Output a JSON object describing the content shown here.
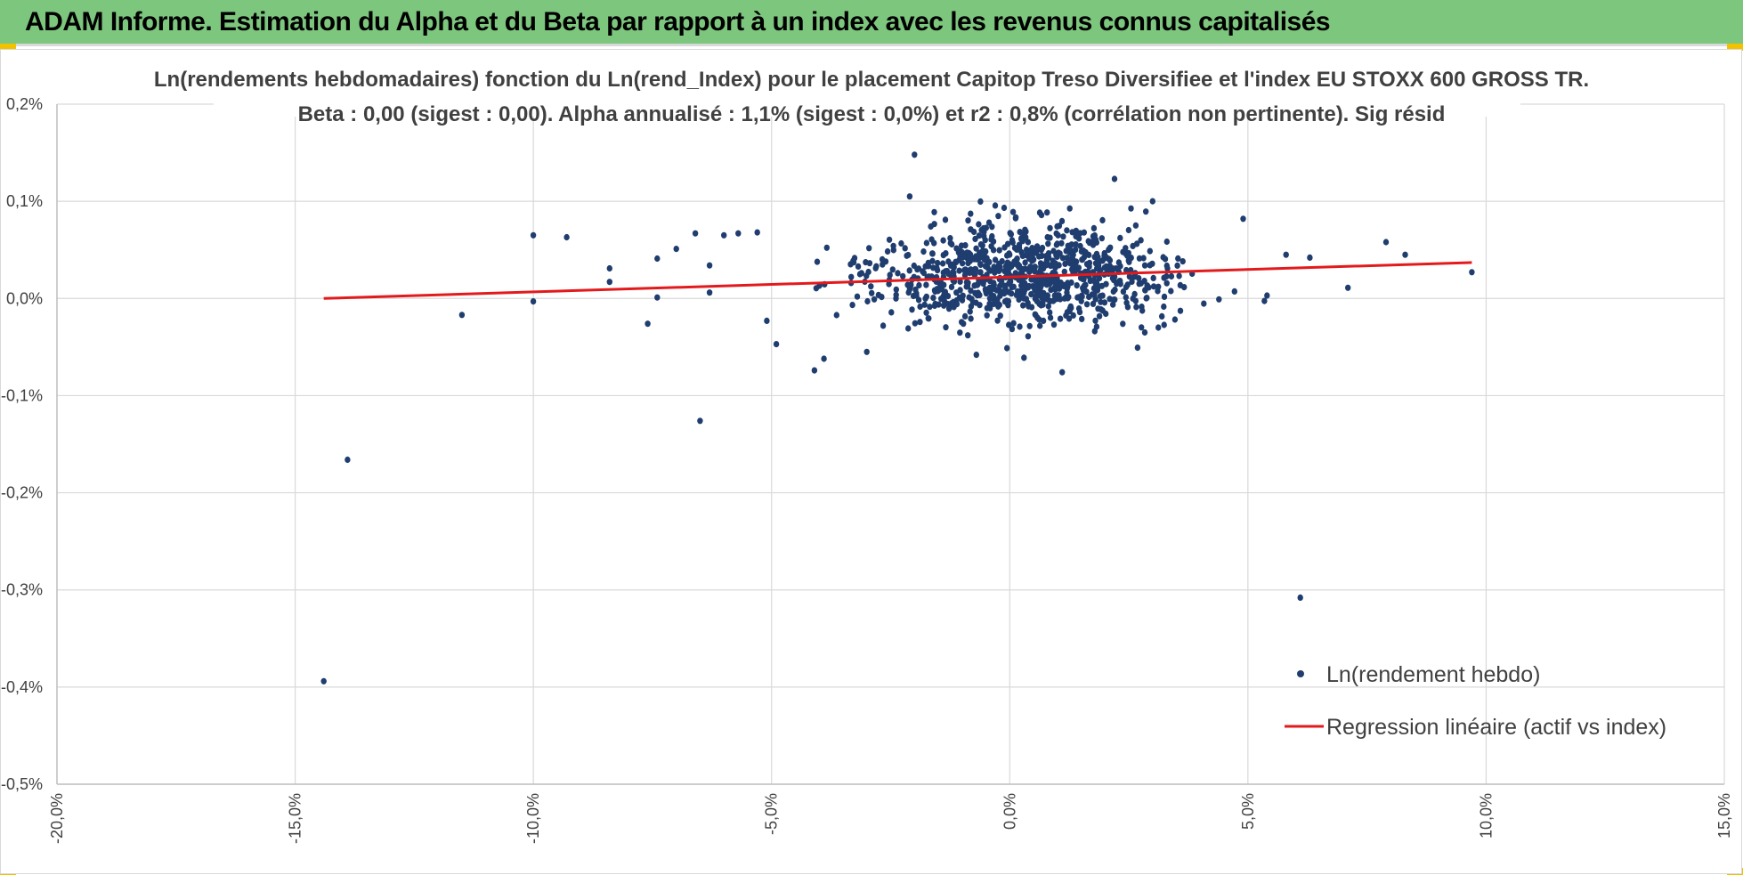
{
  "header": {
    "title": "ADAM Informe. Estimation du Alpha et du Beta par rapport à un index avec les revenus connus capitalisés"
  },
  "colors": {
    "banner": "#7dc67e",
    "points": "#1f3d6e",
    "regression": "#e31a1c",
    "corner": "#f2c200"
  },
  "chart_data": {
    "type": "scatter",
    "title": "Ln(rendements hebdomadaires) fonction du Ln(rend_Index) pour le placement Capitop Treso Diversifiee et l'index EU STOXX 600 GROSS TR.",
    "subtitle": "Beta : 0,00 (sigest : 0,00).  Alpha annualisé : 1,1% (sigest : 0,0%) et r2 : 0,8% (corrélation non pertinente). Sig résid",
    "xlabel": "",
    "ylabel": "",
    "xlim": [
      -20,
      15
    ],
    "ylim": [
      -0.5,
      0.2
    ],
    "x_ticks": [
      -20,
      -15,
      -10,
      -5,
      0,
      5,
      10,
      15
    ],
    "y_ticks": [
      0.2,
      0.1,
      0.0,
      -0.1,
      -0.2,
      -0.3,
      -0.4,
      -0.5
    ],
    "x_tick_labels": [
      "-20,0%",
      "-15,0%",
      "-10,0%",
      "-5,0%",
      "0,0%",
      "5,0%",
      "10,0%",
      "15,0%"
    ],
    "y_tick_labels": [
      "0,2%",
      "0,1%",
      "0,0%",
      "-0,1%",
      "-0,2%",
      "-0,3%",
      "-0,4%",
      "-0,5%"
    ],
    "grid": true,
    "legend_position": "bottom-right",
    "series": [
      {
        "name": "Ln(rendement hebdo)",
        "kind": "scatter",
        "cluster": {
          "count": 900,
          "x_center": 0.3,
          "x_sd": 1.6,
          "y_center": 0.025,
          "y_sd": 0.025,
          "x_range": [
            -6,
            6
          ],
          "y_range": [
            -0.07,
            0.1
          ]
        },
        "points": [
          [
            -14.4,
            -0.394
          ],
          [
            -13.9,
            -0.166
          ],
          [
            6.1,
            -0.308
          ],
          [
            -6.5,
            -0.126
          ],
          [
            -11.5,
            -0.017
          ],
          [
            -10.0,
            0.065
          ],
          [
            -10.0,
            -0.003
          ],
          [
            -9.3,
            0.063
          ],
          [
            -8.4,
            0.031
          ],
          [
            -8.4,
            0.017
          ],
          [
            -7.6,
            -0.026
          ],
          [
            -7.4,
            0.041
          ],
          [
            -7.4,
            0.001
          ],
          [
            -7.0,
            0.051
          ],
          [
            -6.6,
            0.067
          ],
          [
            -6.3,
            0.034
          ],
          [
            -6.3,
            0.006
          ],
          [
            -6.0,
            0.065
          ],
          [
            -5.7,
            0.067
          ],
          [
            -5.3,
            0.068
          ],
          [
            -4.9,
            -0.047
          ],
          [
            -4.1,
            -0.074
          ],
          [
            -3.9,
            -0.062
          ],
          [
            -2.0,
            0.148
          ],
          [
            -2.1,
            0.105
          ],
          [
            2.2,
            0.123
          ],
          [
            3.0,
            0.1
          ],
          [
            5.8,
            0.045
          ],
          [
            6.3,
            0.042
          ],
          [
            7.1,
            0.011
          ],
          [
            7.9,
            0.058
          ],
          [
            8.3,
            0.045
          ],
          [
            9.7,
            0.027
          ],
          [
            4.9,
            0.082
          ],
          [
            5.4,
            0.003
          ],
          [
            1.1,
            -0.076
          ],
          [
            0.3,
            -0.061
          ],
          [
            -0.7,
            -0.058
          ],
          [
            -3.0,
            -0.055
          ],
          [
            -5.1,
            -0.023
          ]
        ]
      },
      {
        "name": "Regression linéaire (actif vs index)",
        "kind": "line",
        "x": [
          -14.4,
          9.7
        ],
        "y": [
          0.0,
          0.037
        ]
      }
    ]
  }
}
